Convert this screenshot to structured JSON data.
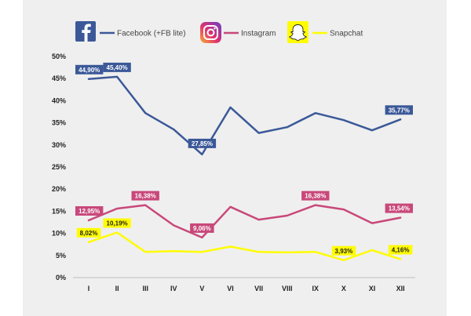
{
  "legend": {
    "items": [
      {
        "name": "Facebook (+FB lite)",
        "icon": "facebook-icon",
        "color": "#3b5998"
      },
      {
        "name": "Instagram",
        "icon": "instagram-icon",
        "color": "#c8487a"
      },
      {
        "name": "Snapchat",
        "icon": "snapchat-icon",
        "color": "#fffc00"
      }
    ]
  },
  "chart_data": {
    "type": "line",
    "categories": [
      "I",
      "II",
      "III",
      "IV",
      "V",
      "VI",
      "VII",
      "VIII",
      "IX",
      "X",
      "XI",
      "XII"
    ],
    "yticks": [
      "0%",
      "5%",
      "10%",
      "15%",
      "20%",
      "25%",
      "30%",
      "35%",
      "40%",
      "45%",
      "50%"
    ],
    "ylim": [
      0,
      50
    ],
    "grid": false,
    "legend_position": "top",
    "series": [
      {
        "name": "Facebook (+FB lite)",
        "color": "#3b5998",
        "values": [
          44.9,
          45.4,
          37.2,
          33.5,
          27.85,
          38.5,
          32.7,
          34.0,
          37.2,
          35.6,
          33.3,
          35.77
        ],
        "labels": [
          {
            "index": 0,
            "text": "44,90%"
          },
          {
            "index": 1,
            "text": "45,40%"
          },
          {
            "index": 4,
            "text": "27,85%"
          },
          {
            "index": 11,
            "text": "35,77%"
          }
        ]
      },
      {
        "name": "Instagram",
        "color": "#c8487a",
        "values": [
          12.95,
          15.6,
          16.38,
          11.8,
          9.06,
          16.0,
          13.1,
          14.0,
          16.38,
          15.4,
          12.3,
          13.54
        ],
        "labels": [
          {
            "index": 0,
            "text": "12,95%"
          },
          {
            "index": 2,
            "text": "16,38%"
          },
          {
            "index": 4,
            "text": "9,06%"
          },
          {
            "index": 8,
            "text": "16,38%"
          },
          {
            "index": 11,
            "text": "13,54%"
          }
        ]
      },
      {
        "name": "Snapchat",
        "color": "#fffc00",
        "values": [
          8.02,
          10.19,
          5.8,
          6.0,
          5.8,
          7.0,
          5.8,
          5.7,
          5.8,
          3.93,
          6.2,
          4.16
        ],
        "labels": [
          {
            "index": 0,
            "text": "8,02%"
          },
          {
            "index": 1,
            "text": "10,19%"
          },
          {
            "index": 9,
            "text": "3,93%"
          },
          {
            "index": 11,
            "text": "4,16%"
          }
        ]
      }
    ]
  }
}
